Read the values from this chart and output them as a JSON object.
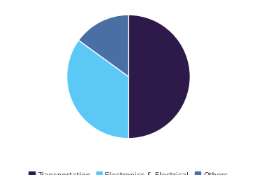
{
  "labels": [
    "Transportation",
    "Electronics & Electrical",
    "Others"
  ],
  "sizes": [
    50,
    35,
    15
  ],
  "colors": [
    "#2e1a4a",
    "#5bc8f5",
    "#4a6fa5"
  ],
  "startangle": 90,
  "counterclock": false,
  "legend_labels": [
    "Transportation",
    "Electronics & Electrical",
    "Others"
  ],
  "background_color": "#ffffff",
  "edge_color": "#ffffff",
  "edge_linewidth": 1.0,
  "legend_fontsize": 7.5,
  "fig_width": 3.68,
  "fig_height": 2.51
}
